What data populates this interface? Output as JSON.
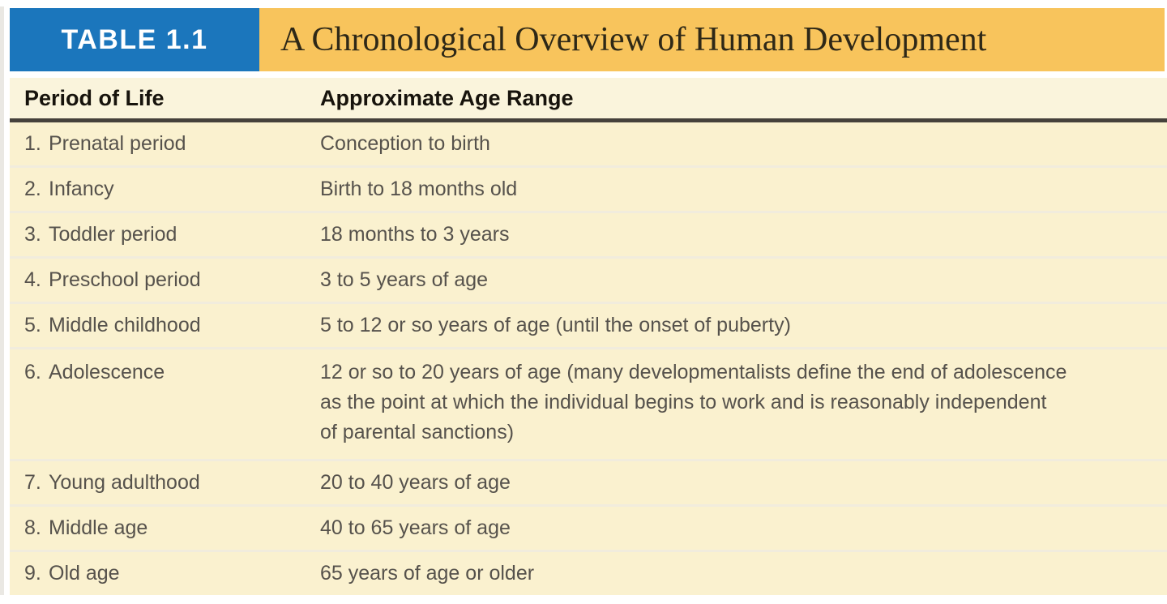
{
  "header": {
    "label": "TABLE 1.1",
    "title": "A Chronological Overview of Human Development"
  },
  "table": {
    "columns": [
      {
        "label": "Period of Life"
      },
      {
        "label": "Approximate Age Range"
      }
    ],
    "rows": [
      {
        "num": "1.",
        "period": "Prenatal period",
        "age": "Conception to birth"
      },
      {
        "num": "2.",
        "period": "Infancy",
        "age": "Birth to 18 months old"
      },
      {
        "num": "3.",
        "period": "Toddler period",
        "age": "18 months to 3 years"
      },
      {
        "num": "4.",
        "period": "Preschool period",
        "age": "3 to 5 years of age"
      },
      {
        "num": "5.",
        "period": "Middle childhood",
        "age": "5 to 12 or so years of age (until the onset of puberty)"
      },
      {
        "num": "6.",
        "period": "Adolescence",
        "age": "12 or so to 20 years of age (many developmentalists define the end of adolescence\nas the point at which the individual begins to work and is reasonably independent\nof parental sanctions)"
      },
      {
        "num": "7.",
        "period": "Young adulthood",
        "age": "20 to 40 years of age"
      },
      {
        "num": "8.",
        "period": "Middle age",
        "age": "40 to 65 years of age"
      },
      {
        "num": "9.",
        "period": "Old age",
        "age": "65 years of age or older"
      }
    ]
  },
  "colors": {
    "accent_blue": "#1b76bc",
    "accent_gold": "#f8c45c",
    "row_cream": "#faf1cf",
    "header_cream": "#faf4dc",
    "rule_dark": "#45413b"
  }
}
